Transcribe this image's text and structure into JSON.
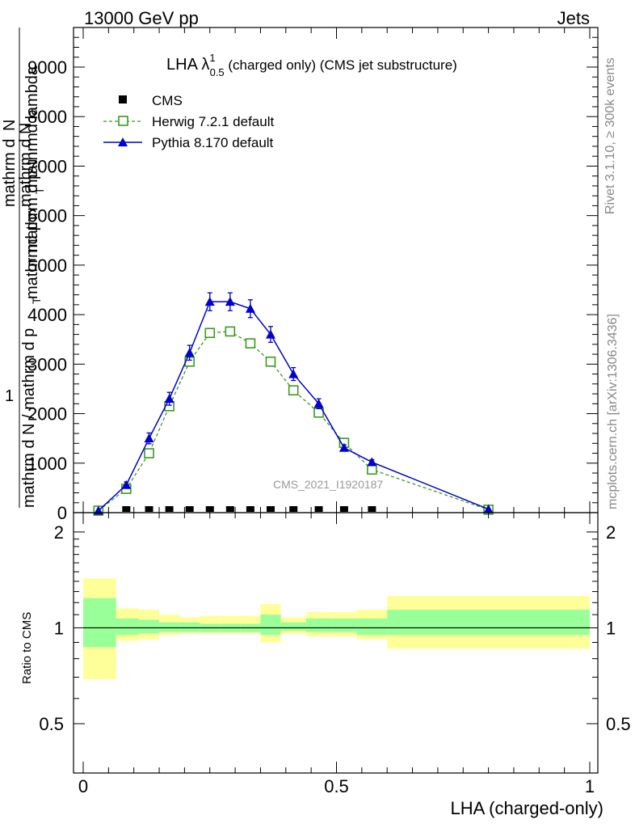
{
  "header": {
    "left": "13000 GeV pp",
    "right": "Jets"
  },
  "side_labels": {
    "rivet": "Rivet 3.1.10, ≥ 300k events",
    "mcplots": "mcplots.cern.ch [arXiv:1306.3436]"
  },
  "watermark": "CMS_2021_I1920187",
  "colors": {
    "cms": "#000000",
    "herwig": "#3c9a1f",
    "pythia": "#0000cc",
    "band_inner": "#99ff99",
    "band_outer": "#ffff99"
  },
  "chart_data": [
    {
      "type": "line",
      "title": {
        "prefix": "LHA λ",
        "sup": "1",
        "sub": "0.5",
        "suffix": " (charged only) (CMS jet substructure)"
      },
      "ylabel": {
        "numer_top": "mathrm d",
        "numer_bottom": "N",
        "line1": "mathrm d N",
        "line2": "mathrm d p",
        "sub_T": "T",
        "line3": " mathrmd lambda",
        "one": "1",
        "denom": "mathrm d N / mathrm d p",
        "denom2": " mathrmd p"
      },
      "ylim": [
        0,
        9800
      ],
      "xlim": [
        -0.02,
        1.0
      ],
      "yticks": [
        0,
        1000,
        2000,
        3000,
        4000,
        5000,
        6000,
        7000,
        8000,
        9000
      ],
      "ytick_labels": [
        "0",
        "1000",
        "2000",
        "3000",
        "4000",
        "5000",
        "6000",
        "7000",
        "8000",
        "9000"
      ],
      "legend_position": "top-left",
      "series": [
        {
          "name": "CMS",
          "x": [
            0.085,
            0.13,
            0.17,
            0.21,
            0.25,
            0.29,
            0.33,
            0.37,
            0.415,
            0.465,
            0.515,
            0.57
          ],
          "y": [
            10,
            10,
            10,
            10,
            10,
            10,
            10,
            10,
            10,
            10,
            10,
            10
          ]
        },
        {
          "name": "Herwig 7.2.1 default",
          "x": [
            0.03,
            0.085,
            0.13,
            0.17,
            0.21,
            0.25,
            0.29,
            0.33,
            0.37,
            0.415,
            0.465,
            0.515,
            0.57,
            0.8
          ],
          "y": [
            40,
            480,
            1200,
            2150,
            3050,
            3630,
            3660,
            3420,
            3050,
            2470,
            2020,
            1410,
            870,
            60
          ]
        },
        {
          "name": "Pythia 8.170 default",
          "x": [
            0.03,
            0.085,
            0.13,
            0.17,
            0.21,
            0.25,
            0.29,
            0.33,
            0.37,
            0.415,
            0.465,
            0.515,
            0.57,
            0.8
          ],
          "y": [
            40,
            560,
            1500,
            2300,
            3230,
            4260,
            4260,
            4120,
            3600,
            2800,
            2200,
            1310,
            1020,
            70
          ]
        }
      ],
      "pythia_errors": [
        0,
        60,
        110,
        130,
        150,
        180,
        180,
        180,
        160,
        130,
        100,
        60,
        50,
        0
      ]
    },
    {
      "type": "area",
      "ylabel": "Ratio to CMS",
      "xlabel": "LHA (charged-only)",
      "ylim": [
        0.35,
        2.3
      ],
      "xlim": [
        -0.02,
        1.0
      ],
      "yticks": [
        0.5,
        1,
        2
      ],
      "ytick_labels": [
        "0.5",
        "1",
        "2"
      ],
      "xticks": [
        0,
        0.5,
        1
      ],
      "xtick_labels": [
        "0",
        "0.5",
        "1"
      ],
      "bins": [
        0.0,
        0.065,
        0.11,
        0.15,
        0.19,
        0.23,
        0.27,
        0.31,
        0.35,
        0.39,
        0.44,
        0.49,
        0.54,
        0.6,
        1.0
      ],
      "inner_band": [
        [
          0.87,
          1.24
        ],
        [
          0.95,
          1.07
        ],
        [
          0.96,
          1.06
        ],
        [
          0.97,
          1.04
        ],
        [
          0.97,
          1.04
        ],
        [
          0.97,
          1.03
        ],
        [
          0.97,
          1.03
        ],
        [
          0.97,
          1.03
        ],
        [
          0.95,
          1.1
        ],
        [
          0.98,
          1.04
        ],
        [
          0.97,
          1.07
        ],
        [
          0.97,
          1.07
        ],
        [
          0.95,
          1.07
        ],
        [
          0.95,
          1.14
        ]
      ],
      "outer_band": [
        [
          0.69,
          1.43
        ],
        [
          0.91,
          1.15
        ],
        [
          0.92,
          1.14
        ],
        [
          0.95,
          1.1
        ],
        [
          0.96,
          1.08
        ],
        [
          0.96,
          1.09
        ],
        [
          0.96,
          1.09
        ],
        [
          0.96,
          1.09
        ],
        [
          0.9,
          1.19
        ],
        [
          0.96,
          1.08
        ],
        [
          0.94,
          1.12
        ],
        [
          0.94,
          1.12
        ],
        [
          0.92,
          1.14
        ],
        [
          0.86,
          1.26
        ]
      ]
    }
  ]
}
